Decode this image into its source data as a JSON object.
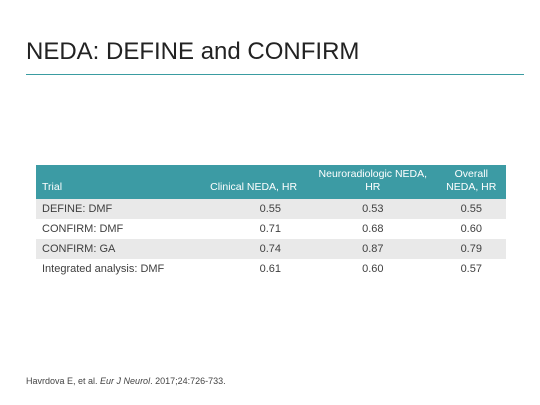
{
  "slide": {
    "title": "NEDA: DEFINE and CONFIRM"
  },
  "table": {
    "headers": {
      "trial": "Trial",
      "clinical": "Clinical NEDA, HR",
      "neuro_line1": "Neuroradiologic NEDA,",
      "neuro_line2": "HR",
      "overall_line1": "Overall",
      "overall_line2": "NEDA, HR"
    },
    "rows": [
      {
        "trial": "DEFINE: DMF",
        "clinical": "0.55",
        "neuro": "0.53",
        "overall": "0.55"
      },
      {
        "trial": "CONFIRM: DMF",
        "clinical": "0.71",
        "neuro": "0.68",
        "overall": "0.60"
      },
      {
        "trial": "CONFIRM: GA",
        "clinical": "0.74",
        "neuro": "0.87",
        "overall": "0.79"
      },
      {
        "trial": "Integrated analysis: DMF",
        "clinical": "0.61",
        "neuro": "0.60",
        "overall": "0.57"
      }
    ]
  },
  "citation": {
    "authors": "Havrdova E, et al. ",
    "journal": "Eur J Neurol",
    "details": ". 2017;24:726-733."
  },
  "colors": {
    "accent": "#3c9ba4",
    "row_shade": "#e9e9e9"
  }
}
